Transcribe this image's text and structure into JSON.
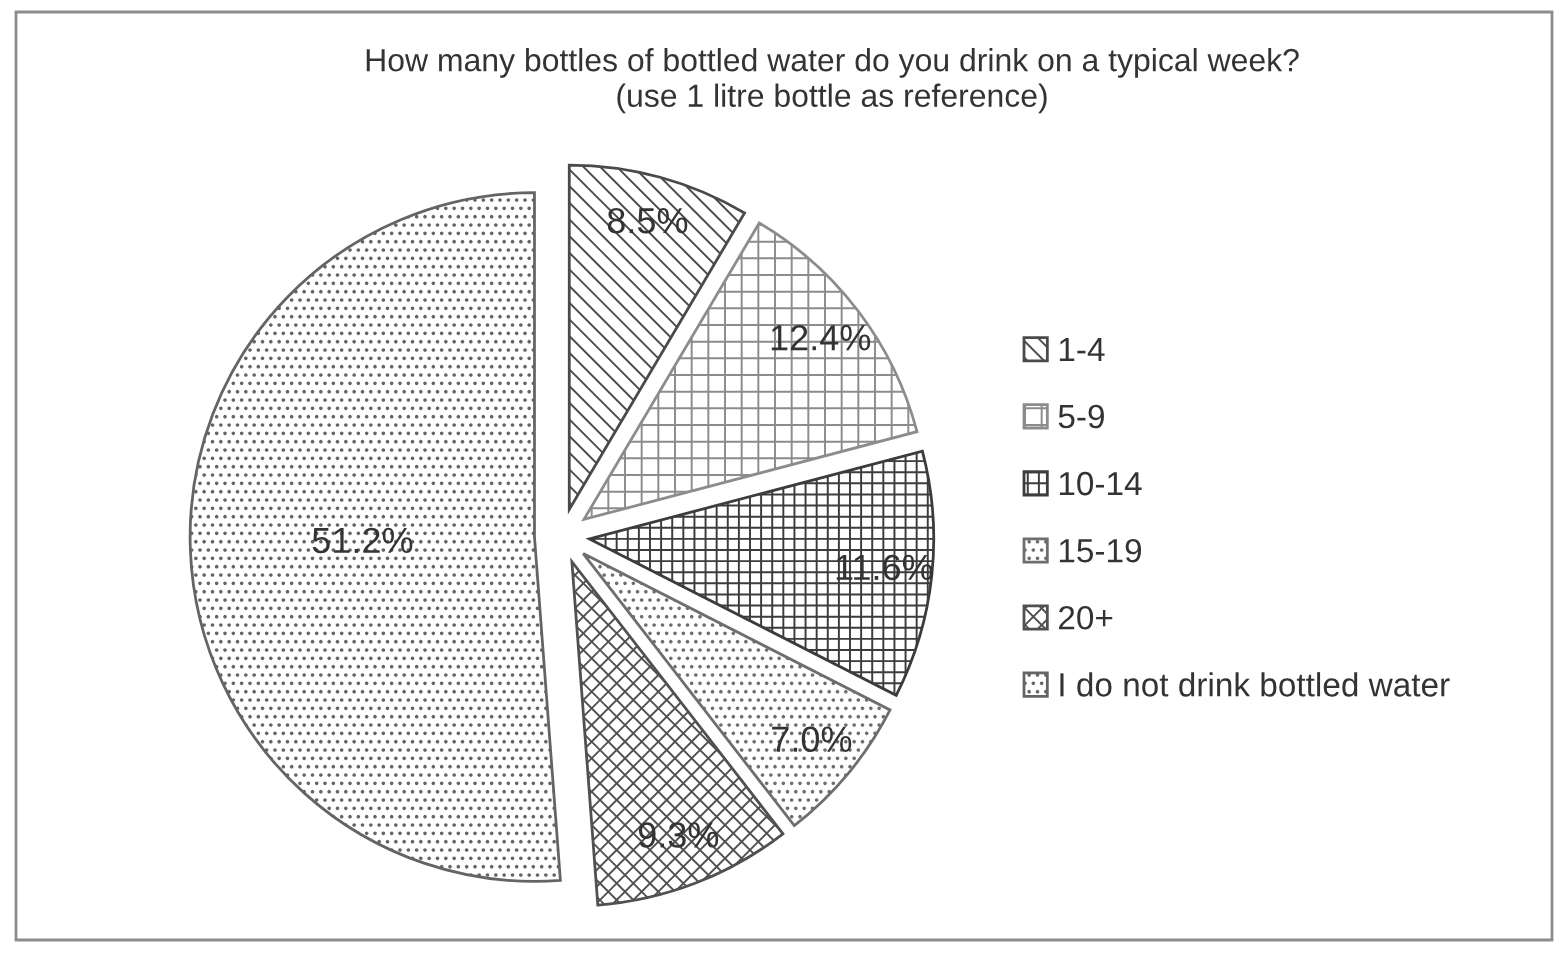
{
  "chart_data": {
    "type": "pie",
    "title": "How many bottles of bottled water do you drink on a typical week?\n(use 1 litre bottle as reference)",
    "categories": [
      "1-4",
      "5-9",
      "10-14",
      "15-19",
      "20+",
      "I do not drink bottled water"
    ],
    "values": [
      8.5,
      12.4,
      11.6,
      7.0,
      9.3,
      51.2
    ],
    "colors": [
      "#4a4a4a",
      "#8c8c8c",
      "#3c3c3c",
      "#6e6e6e",
      "#505050",
      "#646464"
    ],
    "value_labels": [
      "8.5%",
      "12.4%",
      "11.6%",
      "7.0%",
      "9.3%",
      "51.2%"
    ],
    "legend": "right"
  }
}
